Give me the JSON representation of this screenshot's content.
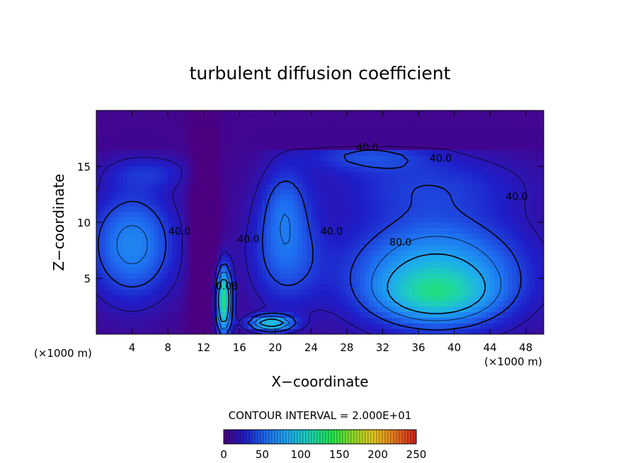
{
  "chart_data": {
    "type": "heatmap",
    "title": "turbulent diffusion coefficient",
    "xlabel": "X−coordinate",
    "ylabel": "Z−coordinate",
    "x_unit": "(×1000 m)",
    "y_unit": "(×1000 m)",
    "xlim": [
      0,
      50
    ],
    "ylim": [
      0,
      20
    ],
    "x_ticks": [
      4,
      8,
      12,
      16,
      20,
      24,
      28,
      32,
      36,
      40,
      44,
      48
    ],
    "y_ticks": [
      5,
      10,
      15
    ],
    "contour_interval_text": "CONTOUR INTERVAL = 2.000E+01",
    "contour_labels": [
      {
        "text": "40.0",
        "x": 30.3,
        "y": 16.4
      },
      {
        "text": "40.0",
        "x": 38.5,
        "y": 15.4
      },
      {
        "text": "40.0",
        "x": 47.0,
        "y": 12.0
      },
      {
        "text": "40.0",
        "x": 26.3,
        "y": 8.9
      },
      {
        "text": "40.0",
        "x": 9.3,
        "y": 8.9
      },
      {
        "text": "40.0",
        "x": 17.0,
        "y": 8.2
      },
      {
        "text": "80.0",
        "x": 34.0,
        "y": 7.9
      },
      {
        "text": "0.08",
        "x": 14.6,
        "y": 4.0
      }
    ],
    "colorbar": {
      "range": [
        0,
        250
      ],
      "ticks": [
        0,
        50,
        100,
        150,
        200,
        250
      ],
      "colors": [
        "#4b0082",
        "#1e1ec8",
        "#1e6ef0",
        "#1eaaf0",
        "#1ed2b4",
        "#1ee650",
        "#8cdc28",
        "#e6c81e",
        "#e6781e",
        "#d21e1e"
      ]
    },
    "field": {
      "background_value": 5,
      "features": [
        {
          "name": "upper-band-right",
          "x": 37,
          "y": 13.5,
          "sx": 12,
          "sy": 3.0,
          "value": 28
        },
        {
          "name": "anvil-arc",
          "x": 30,
          "y": 16.0,
          "sx": 7,
          "sy": 1.4,
          "value": 30
        },
        {
          "name": "left-cell",
          "x": 4,
          "y": 8.0,
          "sx": 5,
          "sy": 5.0,
          "value": 62
        },
        {
          "name": "left-upper-band",
          "x": 6,
          "y": 14.5,
          "sx": 5,
          "sy": 1.5,
          "value": 22
        },
        {
          "name": "right-cell",
          "x": 38,
          "y": 5.5,
          "sx": 10,
          "sy": 5.0,
          "value": 80
        },
        {
          "name": "right-core",
          "x": 38,
          "y": 3.5,
          "sx": 6,
          "sy": 2.2,
          "value": 50
        },
        {
          "name": "mid-plume",
          "x": 21,
          "y": 7.5,
          "sx": 4,
          "sy": 5.0,
          "value": 45
        },
        {
          "name": "mid-plume-upper",
          "x": 21,
          "y": 12.0,
          "sx": 2.5,
          "sy": 3.5,
          "value": 25
        },
        {
          "name": "updraft-core",
          "x": 14.2,
          "y": 3.0,
          "sx": 0.9,
          "sy": 3.0,
          "value": 120
        },
        {
          "name": "surface-spot",
          "x": 19.5,
          "y": 1.0,
          "sx": 2.5,
          "sy": 0.7,
          "value": 90
        },
        {
          "name": "dark-column",
          "x": 12,
          "y": 8.0,
          "sx": 1.5,
          "sy": 10.0,
          "value": -30
        }
      ]
    }
  }
}
